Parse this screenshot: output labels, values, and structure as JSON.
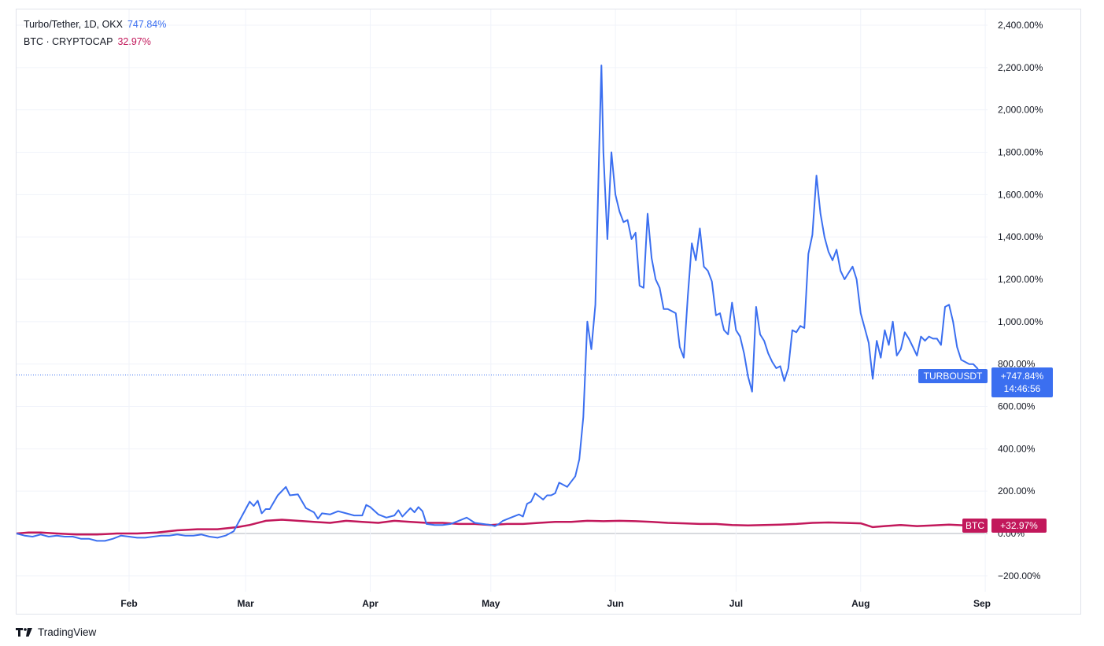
{
  "legend": {
    "series1_name": "Turbo/Tether, 1D, OKX",
    "series1_value": "747.84%",
    "series2_name": "BTC · CRYPTOCAP",
    "series2_value": "32.97%"
  },
  "colors": {
    "turbo": "#3b6ff0",
    "btc": "#c2185b",
    "grid": "#f0f3fa",
    "axis_text": "#131722"
  },
  "tags": {
    "turbo_name": "TURBOUSDT",
    "turbo_value": "+747.84%",
    "turbo_countdown": "14:46:56",
    "btc_name": "BTC",
    "btc_value": "+32.97%"
  },
  "brand": {
    "name": "TradingView",
    "logo_icon": "tradingview-logo-icon"
  },
  "chart_data": {
    "type": "line",
    "ylim": [
      -250,
      2450
    ],
    "y_ticks": [
      2400,
      2200,
      2000,
      1800,
      1600,
      1400,
      1200,
      1000,
      800,
      600,
      400,
      200,
      0,
      -200
    ],
    "y_tick_labels": [
      "2,400.00%",
      "2,200.00%",
      "2,000.00%",
      "1,800.00%",
      "1,600.00%",
      "1,400.00%",
      "1,200.00%",
      "1,000.00%",
      "800.00%",
      "600.00%",
      "400.00%",
      "200.00%",
      "0.00%",
      "−200.00%"
    ],
    "x_domain": [
      0,
      240
    ],
    "x_ticks": [
      {
        "x": 28,
        "label": "Feb"
      },
      {
        "x": 57,
        "label": "Mar"
      },
      {
        "x": 88,
        "label": "Apr"
      },
      {
        "x": 118,
        "label": "May"
      },
      {
        "x": 149,
        "label": "Jun"
      },
      {
        "x": 179,
        "label": "Jul"
      },
      {
        "x": 210,
        "label": "Aug"
      },
      {
        "x": 241,
        "label": "Sep"
      }
    ],
    "grid": true,
    "series": [
      {
        "name": "Turbo/Tether, 1D, OKX",
        "color": "#3b6ff0",
        "points": [
          [
            0,
            0
          ],
          [
            2,
            -10
          ],
          [
            4,
            -15
          ],
          [
            6,
            -5
          ],
          [
            8,
            -15
          ],
          [
            10,
            -10
          ],
          [
            12,
            -15
          ],
          [
            14,
            -15
          ],
          [
            16,
            -25
          ],
          [
            18,
            -25
          ],
          [
            20,
            -35
          ],
          [
            22,
            -35
          ],
          [
            24,
            -25
          ],
          [
            26,
            -10
          ],
          [
            28,
            -15
          ],
          [
            30,
            -20
          ],
          [
            32,
            -20
          ],
          [
            34,
            -15
          ],
          [
            36,
            -10
          ],
          [
            38,
            -10
          ],
          [
            40,
            -5
          ],
          [
            42,
            -10
          ],
          [
            44,
            -10
          ],
          [
            46,
            -5
          ],
          [
            48,
            -15
          ],
          [
            50,
            -20
          ],
          [
            52,
            -10
          ],
          [
            54,
            10
          ],
          [
            56,
            80
          ],
          [
            58,
            150
          ],
          [
            59,
            130
          ],
          [
            60,
            155
          ],
          [
            61,
            95
          ],
          [
            62,
            115
          ],
          [
            63,
            115
          ],
          [
            65,
            180
          ],
          [
            67,
            220
          ],
          [
            68,
            180
          ],
          [
            70,
            185
          ],
          [
            72,
            120
          ],
          [
            74,
            100
          ],
          [
            75,
            70
          ],
          [
            76,
            95
          ],
          [
            78,
            90
          ],
          [
            80,
            105
          ],
          [
            82,
            95
          ],
          [
            84,
            85
          ],
          [
            86,
            85
          ],
          [
            87,
            135
          ],
          [
            88,
            125
          ],
          [
            90,
            90
          ],
          [
            92,
            75
          ],
          [
            94,
            85
          ],
          [
            95,
            110
          ],
          [
            96,
            80
          ],
          [
            98,
            120
          ],
          [
            99,
            100
          ],
          [
            100,
            125
          ],
          [
            101,
            105
          ],
          [
            102,
            45
          ],
          [
            104,
            40
          ],
          [
            106,
            40
          ],
          [
            108,
            45
          ],
          [
            110,
            60
          ],
          [
            112,
            75
          ],
          [
            114,
            50
          ],
          [
            116,
            45
          ],
          [
            118,
            40
          ],
          [
            119,
            35
          ],
          [
            120,
            45
          ],
          [
            121,
            60
          ],
          [
            123,
            75
          ],
          [
            125,
            90
          ],
          [
            126,
            80
          ],
          [
            127,
            140
          ],
          [
            128,
            150
          ],
          [
            129,
            190
          ],
          [
            131,
            160
          ],
          [
            132,
            180
          ],
          [
            133,
            180
          ],
          [
            134,
            190
          ],
          [
            135,
            240
          ],
          [
            137,
            220
          ],
          [
            139,
            270
          ],
          [
            140,
            350
          ],
          [
            141,
            550
          ],
          [
            142,
            1000
          ],
          [
            143,
            870
          ],
          [
            144,
            1080
          ],
          [
            145,
            1850
          ],
          [
            145.5,
            2210
          ],
          [
            146,
            1800
          ],
          [
            147,
            1390
          ],
          [
            148,
            1800
          ],
          [
            149,
            1600
          ],
          [
            150,
            1520
          ],
          [
            151,
            1470
          ],
          [
            152,
            1480
          ],
          [
            153,
            1390
          ],
          [
            154,
            1420
          ],
          [
            155,
            1170
          ],
          [
            156,
            1160
          ],
          [
            157,
            1510
          ],
          [
            158,
            1300
          ],
          [
            159,
            1200
          ],
          [
            160,
            1160
          ],
          [
            161,
            1060
          ],
          [
            162,
            1060
          ],
          [
            163,
            1050
          ],
          [
            164,
            1040
          ],
          [
            165,
            880
          ],
          [
            166,
            830
          ],
          [
            167,
            1120
          ],
          [
            168,
            1370
          ],
          [
            169,
            1290
          ],
          [
            170,
            1440
          ],
          [
            171,
            1260
          ],
          [
            172,
            1240
          ],
          [
            173,
            1190
          ],
          [
            174,
            1030
          ],
          [
            175,
            1040
          ],
          [
            176,
            960
          ],
          [
            177,
            940
          ],
          [
            178,
            1090
          ],
          [
            179,
            960
          ],
          [
            180,
            930
          ],
          [
            181,
            850
          ],
          [
            182,
            740
          ],
          [
            183,
            670
          ],
          [
            184,
            1070
          ],
          [
            185,
            940
          ],
          [
            186,
            910
          ],
          [
            187,
            850
          ],
          [
            188,
            810
          ],
          [
            189,
            780
          ],
          [
            190,
            790
          ],
          [
            191,
            720
          ],
          [
            192,
            780
          ],
          [
            193,
            960
          ],
          [
            194,
            950
          ],
          [
            195,
            980
          ],
          [
            196,
            970
          ],
          [
            197,
            1320
          ],
          [
            198,
            1410
          ],
          [
            199,
            1690
          ],
          [
            200,
            1510
          ],
          [
            201,
            1400
          ],
          [
            202,
            1330
          ],
          [
            203,
            1290
          ],
          [
            204,
            1340
          ],
          [
            205,
            1240
          ],
          [
            206,
            1200
          ],
          [
            207,
            1230
          ],
          [
            208,
            1260
          ],
          [
            209,
            1200
          ],
          [
            210,
            1040
          ],
          [
            211,
            970
          ],
          [
            212,
            900
          ],
          [
            213,
            730
          ],
          [
            214,
            910
          ],
          [
            215,
            830
          ],
          [
            216,
            960
          ],
          [
            217,
            890
          ],
          [
            218,
            1000
          ],
          [
            219,
            840
          ],
          [
            220,
            870
          ],
          [
            221,
            950
          ],
          [
            222,
            920
          ],
          [
            223,
            880
          ],
          [
            224,
            840
          ],
          [
            225,
            930
          ],
          [
            226,
            910
          ],
          [
            227,
            930
          ],
          [
            228,
            920
          ],
          [
            229,
            920
          ],
          [
            230,
            890
          ],
          [
            231,
            1070
          ],
          [
            232,
            1080
          ],
          [
            233,
            1000
          ],
          [
            234,
            880
          ],
          [
            235,
            820
          ],
          [
            236,
            810
          ],
          [
            237,
            800
          ],
          [
            238,
            800
          ],
          [
            239,
            780
          ],
          [
            240,
            748
          ]
        ]
      },
      {
        "name": "BTC · CRYPTOCAP",
        "color": "#c2185b",
        "points": [
          [
            0,
            0
          ],
          [
            3,
            5
          ],
          [
            6,
            5
          ],
          [
            10,
            0
          ],
          [
            15,
            -5
          ],
          [
            20,
            -5
          ],
          [
            25,
            0
          ],
          [
            30,
            0
          ],
          [
            35,
            5
          ],
          [
            40,
            15
          ],
          [
            45,
            20
          ],
          [
            50,
            20
          ],
          [
            55,
            30
          ],
          [
            58,
            40
          ],
          [
            62,
            60
          ],
          [
            66,
            65
          ],
          [
            70,
            60
          ],
          [
            74,
            55
          ],
          [
            78,
            50
          ],
          [
            82,
            60
          ],
          [
            86,
            55
          ],
          [
            90,
            50
          ],
          [
            94,
            60
          ],
          [
            98,
            55
          ],
          [
            102,
            50
          ],
          [
            106,
            50
          ],
          [
            110,
            45
          ],
          [
            114,
            45
          ],
          [
            118,
            40
          ],
          [
            122,
            45
          ],
          [
            126,
            45
          ],
          [
            130,
            50
          ],
          [
            134,
            55
          ],
          [
            138,
            55
          ],
          [
            142,
            60
          ],
          [
            146,
            58
          ],
          [
            150,
            60
          ],
          [
            154,
            58
          ],
          [
            158,
            55
          ],
          [
            162,
            50
          ],
          [
            166,
            48
          ],
          [
            170,
            45
          ],
          [
            174,
            45
          ],
          [
            178,
            40
          ],
          [
            182,
            38
          ],
          [
            186,
            40
          ],
          [
            190,
            42
          ],
          [
            194,
            45
          ],
          [
            198,
            50
          ],
          [
            202,
            52
          ],
          [
            206,
            50
          ],
          [
            210,
            48
          ],
          [
            213,
            30
          ],
          [
            216,
            35
          ],
          [
            220,
            40
          ],
          [
            224,
            35
          ],
          [
            228,
            38
          ],
          [
            232,
            42
          ],
          [
            236,
            38
          ],
          [
            240,
            33
          ]
        ]
      }
    ]
  }
}
